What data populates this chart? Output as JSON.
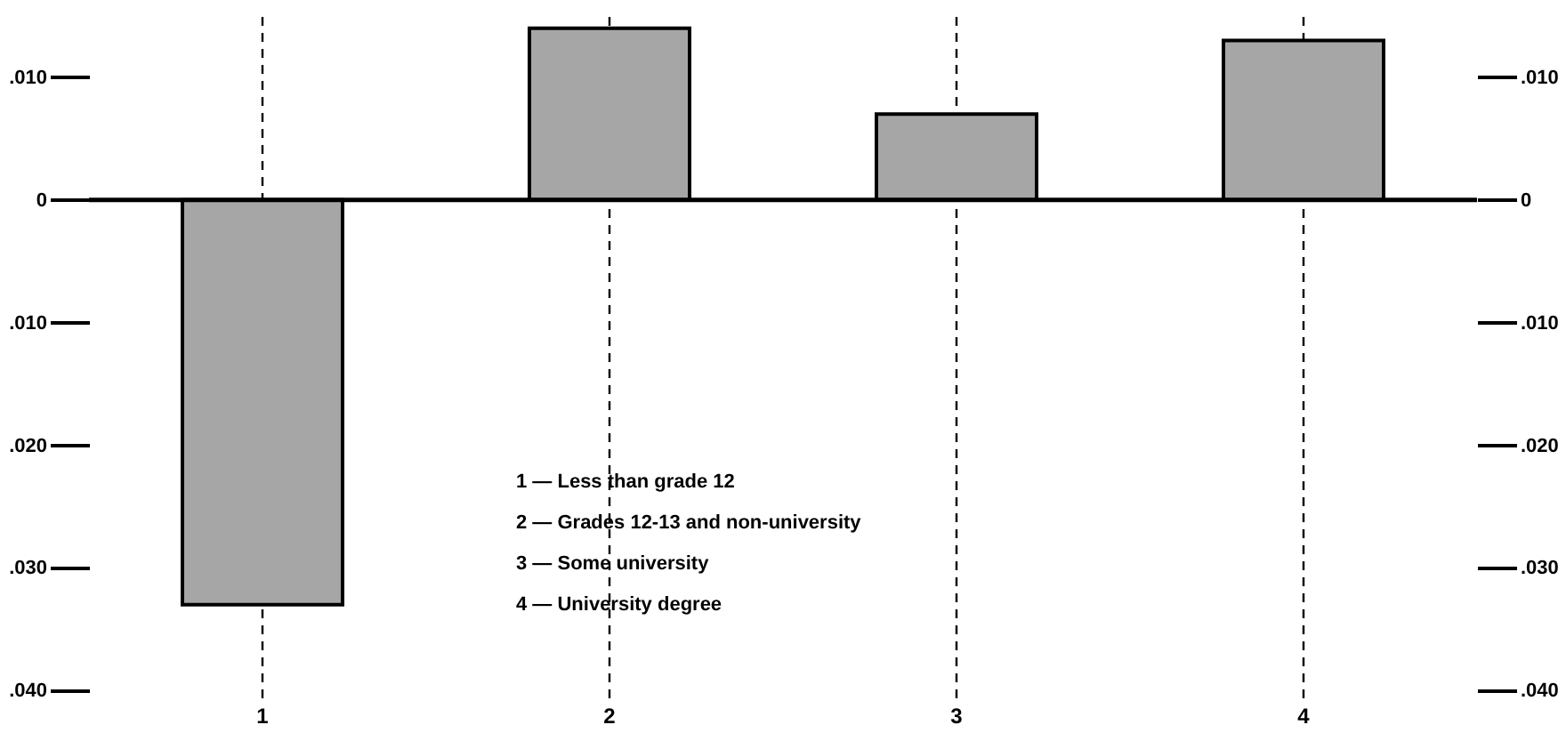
{
  "chart_data": {
    "type": "bar",
    "categories": [
      "1",
      "2",
      "3",
      "4"
    ],
    "series": [
      {
        "color": "#a6a6a6",
        "values": [
          -0.033,
          0.014,
          0.007,
          0.013
        ]
      }
    ],
    "ylim": [
      -0.041,
      0.015
    ],
    "yticks": [
      {
        "value": 0.01,
        "label": ".010"
      },
      {
        "value": 0,
        "label": "0"
      },
      {
        "value": -0.01,
        "label": ".010"
      },
      {
        "value": -0.02,
        "label": ".020"
      },
      {
        "value": -0.03,
        "label": ".030"
      },
      {
        "value": -0.04,
        "label": ".040"
      }
    ],
    "y2lim": [
      -0.041,
      0.015
    ],
    "y2ticks": [
      {
        "value": 0.01,
        "label": ".010"
      },
      {
        "value": 0,
        "label": "0"
      },
      {
        "value": -0.01,
        "label": ".010"
      },
      {
        "value": -0.02,
        "label": ".020"
      },
      {
        "value": -0.03,
        "label": ".030"
      },
      {
        "value": -0.04,
        "label": ".040"
      }
    ],
    "ref_lines": [
      {
        "axis": "y",
        "value": 0,
        "color": "#000000"
      }
    ],
    "grid": "x",
    "annotations": [
      "1 — Less than grade 12",
      "2 — Grades 12-13 and non-university",
      "3 — Some university",
      "4 — University degree"
    ]
  }
}
